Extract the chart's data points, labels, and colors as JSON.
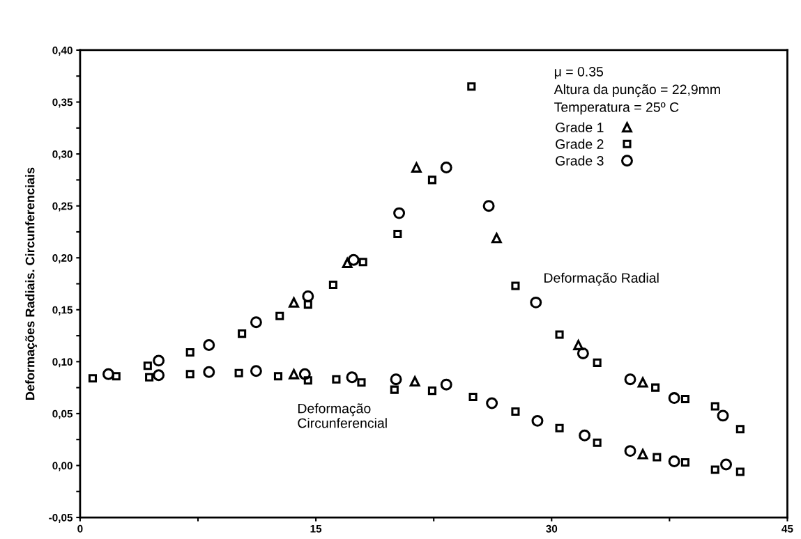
{
  "chart_data": {
    "type": "scatter",
    "ylabel": "Deformações Radiais. Circunferenciais",
    "xlim": [
      0,
      45
    ],
    "xticks": [
      0,
      {
        "value": 7.5,
        "label": null
      },
      15,
      {
        "value": 22.5,
        "label": null
      },
      30,
      {
        "value": 37.5,
        "label": null
      },
      45
    ],
    "ylim": [
      -0.05,
      0.4
    ],
    "yticks": [
      {
        "value": -0.05,
        "label": "-0,05"
      },
      {
        "value": -0.025,
        "label": null
      },
      {
        "value": 0,
        "label": "0,00"
      },
      {
        "value": 0.025,
        "label": null
      },
      {
        "value": 0.05,
        "label": "0,05"
      },
      {
        "value": 0.075,
        "label": null
      },
      {
        "value": 0.1,
        "label": "0,10"
      },
      {
        "value": 0.125,
        "label": null
      },
      {
        "value": 0.15,
        "label": "0,15"
      },
      {
        "value": 0.175,
        "label": null
      },
      {
        "value": 0.2,
        "label": "0,20"
      },
      {
        "value": 0.225,
        "label": null
      },
      {
        "value": 0.25,
        "label": "0,25"
      },
      {
        "value": 0.275,
        "label": null
      },
      {
        "value": 0.3,
        "label": "0,30"
      },
      {
        "value": 0.325,
        "label": null
      },
      {
        "value": 0.35,
        "label": "0,35"
      },
      {
        "value": 0.375,
        "label": null
      },
      {
        "value": 0.4,
        "label": "0,40"
      }
    ],
    "grid": false,
    "legend": "top right",
    "annotations": [
      "μ = 0.35",
      "Altura da punção = 22,9mm",
      "Temperatura = 25º C",
      "Deformação Radial",
      "Deformação\nCircunferencial"
    ],
    "series": [
      {
        "name": "Grade 1",
        "color": "#000000",
        "marker": "triangle",
        "x": [
          13.6,
          17.0,
          21.4,
          26.5,
          31.7,
          35.8,
          13.6,
          21.3,
          35.8
        ],
        "values": [
          0.157,
          0.195,
          0.287,
          0.219,
          0.116,
          0.08,
          0.088,
          0.081,
          0.011
        ]
      },
      {
        "name": "Grade 2",
        "color": "#000000",
        "marker": "square",
        "x": [
          4.3,
          7.0,
          10.3,
          12.7,
          14.5,
          16.1,
          18.0,
          20.2,
          22.4,
          24.9,
          27.7,
          30.5,
          32.9,
          36.6,
          38.5,
          40.4,
          42.0,
          0.8,
          2.3,
          4.4,
          7.0,
          10.1,
          12.6,
          14.5,
          16.3,
          17.9,
          20.0,
          22.4,
          25.0,
          27.7,
          30.5,
          32.9,
          36.7,
          38.5,
          40.4,
          42.0
        ],
        "values": [
          0.096,
          0.109,
          0.127,
          0.144,
          0.155,
          0.174,
          0.196,
          0.223,
          0.275,
          0.365,
          0.173,
          0.126,
          0.099,
          0.075,
          0.064,
          0.057,
          0.035,
          0.084,
          0.086,
          0.085,
          0.088,
          0.089,
          0.086,
          0.082,
          0.083,
          0.08,
          0.073,
          0.072,
          0.066,
          0.052,
          0.036,
          0.022,
          0.008,
          0.003,
          -0.004,
          -0.006
        ]
      },
      {
        "name": "Grade 3",
        "color": "#000000",
        "marker": "circle",
        "x": [
          5.0,
          8.2,
          11.2,
          14.5,
          17.4,
          20.3,
          23.3,
          26.0,
          29.0,
          32.0,
          35.0,
          37.8,
          40.9,
          1.8,
          5.0,
          8.2,
          11.2,
          14.3,
          17.3,
          20.1,
          23.3,
          26.2,
          29.1,
          32.1,
          35.0,
          37.8,
          41.1
        ],
        "values": [
          0.101,
          0.116,
          0.138,
          0.163,
          0.198,
          0.243,
          0.287,
          0.25,
          0.157,
          0.108,
          0.083,
          0.065,
          0.048,
          0.088,
          0.087,
          0.09,
          0.091,
          0.088,
          0.085,
          0.083,
          0.078,
          0.06,
          0.043,
          0.029,
          0.014,
          0.004,
          0.001
        ]
      }
    ]
  }
}
